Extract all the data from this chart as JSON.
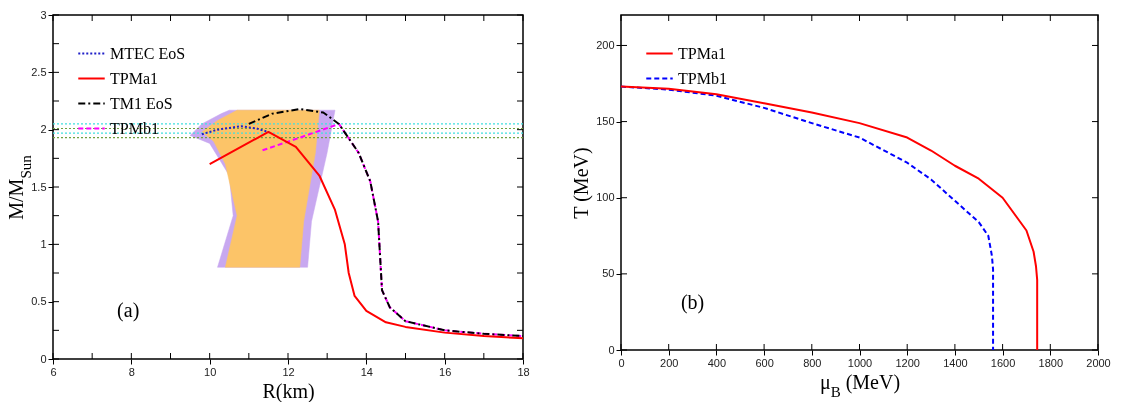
{
  "chart_data": [
    {
      "type": "line",
      "xlabel": "R(km)",
      "ylabel": "M/M$_{Sun}$",
      "annotations": [
        "(a)"
      ],
      "legend": "top left",
      "grid": false,
      "marker": "none",
      "xlim": [
        6,
        18
      ],
      "ylim": [
        0,
        3
      ],
      "xticks": [
        6,
        {
          "value": 7,
          "label": null
        },
        8,
        {
          "value": 9,
          "label": null
        },
        10,
        {
          "value": 11,
          "label": null
        },
        12,
        {
          "value": 13,
          "label": null
        },
        14,
        {
          "value": 15,
          "label": null
        },
        16,
        {
          "value": 17,
          "label": null
        },
        18
      ],
      "yticks": [
        0,
        {
          "value": 0.25,
          "label": null
        },
        0.5,
        {
          "value": 0.75,
          "label": null
        },
        1,
        {
          "value": 1.25,
          "label": null
        },
        1.5,
        {
          "value": 1.75,
          "label": null
        },
        2,
        {
          "value": 2.25,
          "label": null
        },
        2.5,
        {
          "value": 2.75,
          "label": null
        },
        3
      ],
      "ref_lines": [
        {
          "axis": "y",
          "value": 2.05,
          "color": "#40e0e0",
          "line_style": "dotted"
        },
        {
          "axis": "y",
          "value": 2.01,
          "color": "#70a040",
          "line_style": "dotted"
        },
        {
          "axis": "y",
          "value": 1.97,
          "color": "#40e0e0",
          "line_style": "dotted"
        },
        {
          "axis": "y",
          "value": 1.93,
          "color": "#70a040",
          "line_style": "dotted"
        }
      ],
      "series": [
        {
          "type": "area",
          "color": "#c8a8f0",
          "x": [
            10.5,
            13.2,
            13.0,
            12.6,
            12.5,
            10.2,
            10.6,
            10.5,
            10.0,
            9.5,
            9.8,
            10.3
          ],
          "values": [
            2.17,
            2.17,
            1.8,
            1.2,
            0.8,
            0.8,
            1.25,
            1.6,
            1.88,
            1.95,
            2.05,
            2.14
          ]
        },
        {
          "type": "area",
          "color": "#fcc468",
          "x": [
            10.7,
            12.8,
            12.7,
            12.4,
            12.3,
            10.4,
            10.7,
            10.4,
            10.1,
            9.8,
            10.2
          ],
          "values": [
            2.17,
            2.17,
            1.8,
            1.2,
            0.8,
            0.8,
            1.25,
            1.7,
            1.9,
            1.98,
            2.08
          ]
        },
        {
          "name": "MTEC EoS",
          "color": "#2020c8",
          "line_style": "dotted",
          "x": [
            9.8,
            10.2,
            10.8,
            11.2,
            11.5
          ],
          "values": [
            1.96,
            2.0,
            2.03,
            2.01,
            1.98
          ]
        },
        {
          "name": "TPMa1",
          "color": "#ff0000",
          "line_style": "solid",
          "x": [
            10,
            10.8,
            11.5,
            12.2,
            12.8,
            13.2,
            13.45,
            13.55,
            13.7,
            14,
            14.5,
            15,
            16,
            17,
            18
          ],
          "values": [
            1.7,
            1.85,
            1.98,
            1.85,
            1.6,
            1.3,
            1.0,
            0.75,
            0.55,
            0.42,
            0.32,
            0.28,
            0.23,
            0.2,
            0.18
          ]
        },
        {
          "name": "TM1 EoS",
          "color": "#000000",
          "line_style": "dashdot",
          "x": [
            11.0,
            11.6,
            12.3,
            12.9,
            13.3,
            13.8,
            14.1,
            14.3,
            14.35,
            14.4,
            14.6,
            15,
            16,
            17,
            18
          ],
          "values": [
            2.05,
            2.14,
            2.18,
            2.15,
            2.05,
            1.8,
            1.55,
            1.2,
            0.9,
            0.6,
            0.45,
            0.33,
            0.25,
            0.22,
            0.2
          ]
        },
        {
          "name": "TPMb1",
          "color": "#ff00ff",
          "line_style": "dashed",
          "x": [
            11.35,
            12.3,
            13.3,
            13.8,
            14.1,
            14.3,
            14.35,
            14.4,
            14.6,
            15,
            16,
            17,
            18
          ],
          "values": [
            1.82,
            1.93,
            2.05,
            1.8,
            1.55,
            1.2,
            0.9,
            0.6,
            0.45,
            0.33,
            0.25,
            0.22,
            0.2
          ]
        }
      ]
    },
    {
      "type": "line",
      "xlabel": "μ$_{B}$ (MeV)",
      "ylabel": "T (MeV)",
      "annotations": [
        "(b)"
      ],
      "legend": "top left",
      "grid": false,
      "marker": "none",
      "xlim": [
        0,
        2000
      ],
      "ylim": [
        0,
        220
      ],
      "xticks": [
        0,
        200,
        400,
        600,
        800,
        1000,
        1200,
        1400,
        1600,
        1800,
        2000
      ],
      "yticks": [
        0,
        50,
        100,
        150,
        200
      ],
      "series": [
        {
          "name": "TPMa1",
          "color": "#ff0000",
          "line_style": "solid",
          "x": [
            0,
            200,
            400,
            600,
            800,
            1000,
            1200,
            1300,
            1400,
            1500,
            1600,
            1700,
            1730,
            1740,
            1745,
            1745
          ],
          "values": [
            173,
            171.5,
            168,
            162,
            156,
            149,
            139.5,
            131,
            121,
            112.5,
            100,
            78.5,
            64.5,
            55,
            46,
            0
          ]
        },
        {
          "name": "TPMb1",
          "color": "#0000ff",
          "line_style": "dashed",
          "x": [
            0,
            200,
            400,
            600,
            800,
            1000,
            1200,
            1300,
            1400,
            1500,
            1540,
            1555,
            1560,
            1560
          ],
          "values": [
            173,
            171,
            167,
            159,
            149,
            139.5,
            123,
            112,
            98,
            84,
            75,
            62,
            53,
            0
          ]
        }
      ]
    }
  ]
}
